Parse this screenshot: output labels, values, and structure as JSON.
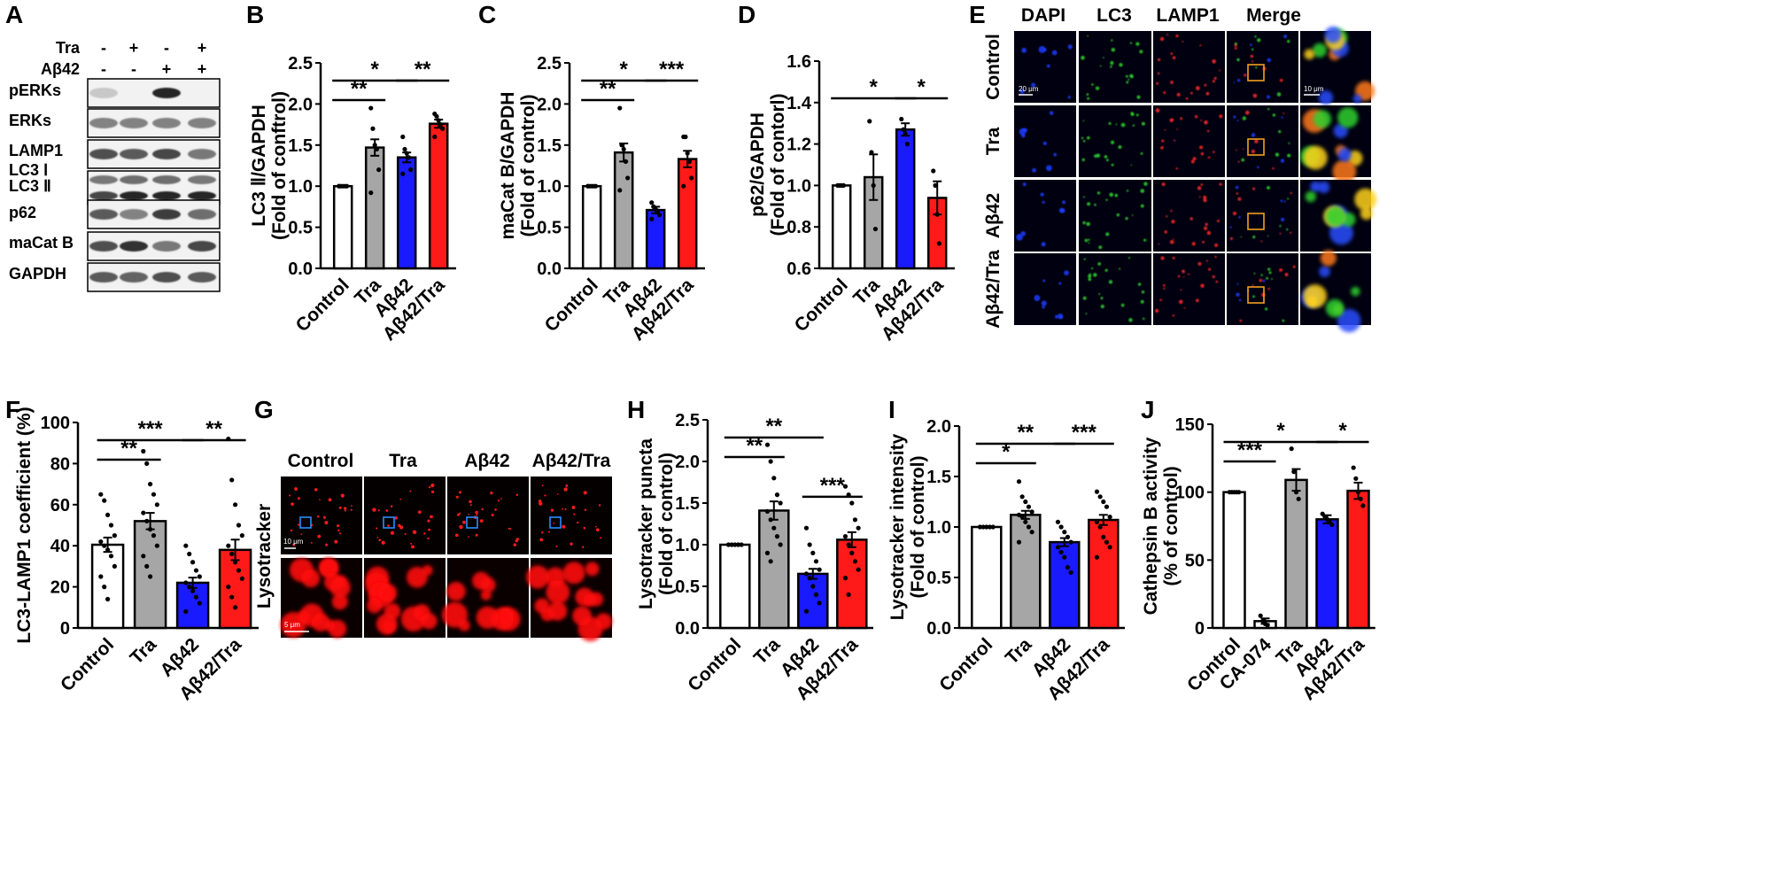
{
  "panels": {
    "A": {
      "label": "A",
      "treatments": [
        {
          "name": "Tra",
          "signs": [
            "-",
            "+",
            "-",
            "+"
          ]
        },
        {
          "name": "Aβ42",
          "signs": [
            "-",
            "-",
            "+",
            "+"
          ]
        }
      ],
      "blots": [
        {
          "name": "pERKs",
          "intensity": [
            0.15,
            0.0,
            0.95,
            0.0
          ]
        },
        {
          "name": "ERKs",
          "intensity": [
            0.5,
            0.5,
            0.5,
            0.5
          ]
        },
        {
          "name": "LAMP1",
          "intensity": [
            0.75,
            0.7,
            0.8,
            0.55
          ]
        },
        {
          "name": "LC3 Ⅰ",
          "intensity": [
            0.55,
            0.6,
            0.6,
            0.55
          ]
        },
        {
          "name": "LC3 Ⅱ",
          "intensity": [
            0.8,
            0.95,
            0.95,
            0.95
          ]
        },
        {
          "name": "p62",
          "intensity": [
            0.7,
            0.5,
            0.85,
            0.6
          ]
        },
        {
          "name": "maCat B",
          "intensity": [
            0.75,
            0.9,
            0.55,
            0.8
          ]
        },
        {
          "name": "GAPDH",
          "intensity": [
            0.7,
            0.65,
            0.75,
            0.7
          ]
        }
      ]
    },
    "E": {
      "label": "E",
      "columns": [
        "DAPI",
        "LC3",
        "LAMP1",
        "Merge"
      ],
      "rows": [
        "Control",
        "Tra",
        "Aβ42",
        "Aβ42/Tra"
      ],
      "scale_main": "20 μm",
      "scale_inset": "10 μm"
    },
    "G": {
      "label": "G",
      "columns": [
        "Control",
        "Tra",
        "Aβ42",
        "Aβ42/Tra"
      ],
      "row_label": "Lysotracker",
      "scale_main": "10 μm",
      "scale_inset": "5 μm"
    }
  },
  "chart_data": [
    {
      "id": "B",
      "label": "B",
      "type": "bar",
      "ylabel": "LC3 Ⅱ/GAPDH",
      "ylabel2": "(Fold of conftrol)",
      "ylim": [
        0,
        2.5
      ],
      "yticks": [
        "0.0",
        "0.5",
        "1.0",
        "1.5",
        "2.0",
        "2.5"
      ],
      "categories": [
        "Control",
        "Tra",
        "Aβ42",
        "Aβ42/Tra"
      ],
      "values": [
        1.0,
        1.47,
        1.35,
        1.76
      ],
      "errors": [
        0.0,
        0.1,
        0.06,
        0.05
      ],
      "colors": [
        "#ffffff",
        "#a6a6a6",
        "#1a1aff",
        "#ff1a1a"
      ],
      "points": [
        [
          1,
          1,
          1,
          1,
          1,
          1
        ],
        [
          1.95,
          1.7,
          1.5,
          1.45,
          1.2,
          0.92
        ],
        [
          1.6,
          1.45,
          1.4,
          1.35,
          1.2,
          1.15
        ],
        [
          1.88,
          1.85,
          1.8,
          1.75,
          1.7,
          1.6
        ]
      ],
      "signif": [
        {
          "from": 0,
          "to": 1,
          "level": 0,
          "text": "**"
        },
        {
          "from": 0,
          "to": 2,
          "level": 1,
          "text": "*"
        },
        {
          "from": 2,
          "to": 3,
          "level": 1,
          "text": "**"
        }
      ]
    },
    {
      "id": "C",
      "label": "C",
      "type": "bar",
      "ylabel": "maCat B/GAPDH",
      "ylabel2": "(Fold of control)",
      "ylim": [
        0,
        2.5
      ],
      "yticks": [
        "0.0",
        "0.5",
        "1.0",
        "1.5",
        "2.0",
        "2.5"
      ],
      "categories": [
        "Control",
        "Tra",
        "Aβ42",
        "Aβ42/Tra"
      ],
      "values": [
        1.0,
        1.41,
        0.71,
        1.33
      ],
      "errors": [
        0.0,
        0.11,
        0.04,
        0.1
      ],
      "colors": [
        "#ffffff",
        "#a6a6a6",
        "#1a1aff",
        "#ff1a1a"
      ],
      "points": [
        [
          1,
          1,
          1,
          1,
          1,
          1
        ],
        [
          1.95,
          1.5,
          1.45,
          1.3,
          1.1,
          0.95
        ],
        [
          0.8,
          0.75,
          0.72,
          0.7,
          0.65,
          0.6
        ],
        [
          1.6,
          1.6,
          1.4,
          1.3,
          1.1,
          1.0
        ]
      ],
      "signif": [
        {
          "from": 0,
          "to": 1,
          "level": 0,
          "text": "**"
        },
        {
          "from": 0,
          "to": 2,
          "level": 1,
          "text": "*"
        },
        {
          "from": 2,
          "to": 3,
          "level": 1,
          "text": "***"
        }
      ]
    },
    {
      "id": "D",
      "label": "D",
      "type": "bar",
      "ylabel": "p62/GAPDH",
      "ylabel2": "(Fold of contorl)",
      "ylim": [
        0.6,
        1.6
      ],
      "yticks": [
        "0.6",
        "0.8",
        "1.0",
        "1.2",
        "1.4",
        "1.6"
      ],
      "categories": [
        "Control",
        "Tra",
        "Aβ42",
        "Aβ42/Tra"
      ],
      "values": [
        1.0,
        1.04,
        1.27,
        0.94
      ],
      "errors": [
        0.0,
        0.11,
        0.03,
        0.08
      ],
      "colors": [
        "#ffffff",
        "#a6a6a6",
        "#1a1aff",
        "#ff1a1a"
      ],
      "points": [
        [
          1,
          1,
          1,
          1
        ],
        [
          1.31,
          1.16,
          1.0,
          0.79
        ],
        [
          1.32,
          1.27,
          1.25,
          1.2
        ],
        [
          1.07,
          1.0,
          0.86,
          0.72
        ]
      ],
      "signif": [
        {
          "from": 0,
          "to": 2,
          "level": 0,
          "text": "*"
        },
        {
          "from": 2,
          "to": 3,
          "level": 0,
          "text": "*"
        }
      ]
    },
    {
      "id": "F",
      "label": "F",
      "type": "bar",
      "ylabel": "LC3-LAMP1 coefficient (%)",
      "ylabel2": "",
      "ylim": [
        0,
        100
      ],
      "yticks": [
        "0",
        "20",
        "40",
        "60",
        "80",
        "100"
      ],
      "categories": [
        "Control",
        "Tra",
        "Aβ42",
        "Aβ42/Tra"
      ],
      "values": [
        40.5,
        52,
        22,
        38
      ],
      "errors": [
        3.5,
        4,
        2.5,
        5
      ],
      "colors": [
        "#ffffff",
        "#a6a6a6",
        "#1a1aff",
        "#ff1a1a"
      ],
      "points": [
        [
          65,
          62,
          55,
          50,
          45,
          42,
          40,
          38,
          35,
          30,
          25,
          20,
          14
        ],
        [
          86,
          80,
          70,
          65,
          60,
          56,
          52,
          48,
          45,
          40,
          35,
          30,
          25
        ],
        [
          40,
          36,
          32,
          28,
          25,
          22,
          20,
          18,
          15,
          12,
          8
        ],
        [
          92,
          72,
          60,
          50,
          45,
          40,
          36,
          32,
          28,
          24,
          20,
          15,
          10
        ]
      ],
      "signif": [
        {
          "from": 0,
          "to": 1,
          "level": 0,
          "text": "**"
        },
        {
          "from": 0,
          "to": 2,
          "level": 1,
          "text": "***"
        },
        {
          "from": 2,
          "to": 3,
          "level": 1,
          "text": "**"
        }
      ]
    },
    {
      "id": "H",
      "label": "H",
      "type": "bar",
      "ylabel": "Lysotracker puncta",
      "ylabel2": "(Fold of control)",
      "ylim": [
        0,
        2.5
      ],
      "yticks": [
        "0.0",
        "0.5",
        "1.0",
        "1.5",
        "2.0",
        "2.5"
      ],
      "categories": [
        "Control",
        "Tra",
        "Aβ42",
        "Aβ42/Tra"
      ],
      "values": [
        1.0,
        1.41,
        0.65,
        1.06
      ],
      "errors": [
        0.0,
        0.11,
        0.06,
        0.09
      ],
      "colors": [
        "#ffffff",
        "#a6a6a6",
        "#1a1aff",
        "#ff1a1a"
      ],
      "points": [
        [
          1,
          1,
          1,
          1,
          1
        ],
        [
          2.2,
          2.0,
          1.8,
          1.6,
          1.5,
          1.4,
          1.3,
          1.2,
          1.1,
          1.0,
          0.9,
          0.8
        ],
        [
          1.2,
          1.0,
          0.9,
          0.8,
          0.7,
          0.65,
          0.6,
          0.5,
          0.4,
          0.3,
          0.2
        ],
        [
          1.7,
          1.6,
          1.5,
          1.3,
          1.2,
          1.1,
          1.0,
          0.9,
          0.8,
          0.7,
          0.6,
          0.4
        ]
      ],
      "signif": [
        {
          "from": 0,
          "to": 1,
          "level": 0,
          "text": "**"
        },
        {
          "from": 0,
          "to": 2,
          "level": 1,
          "text": "**"
        },
        {
          "from": 2,
          "to": 3,
          "level": -1,
          "text": "***"
        }
      ]
    },
    {
      "id": "I",
      "label": "I",
      "type": "bar",
      "ylabel": "Lysotracker intensity",
      "ylabel2": "(Fold of control)",
      "ylim": [
        0,
        2.0
      ],
      "yticks": [
        "0.0",
        "0.5",
        "1.0",
        "1.5",
        "2.0"
      ],
      "categories": [
        "Control",
        "Tra",
        "Aβ42",
        "Aβ42/Tra"
      ],
      "values": [
        1.0,
        1.12,
        0.85,
        1.07
      ],
      "errors": [
        0.0,
        0.04,
        0.04,
        0.05
      ],
      "colors": [
        "#ffffff",
        "#a6a6a6",
        "#1a1aff",
        "#ff1a1a"
      ],
      "points": [
        [
          1,
          1,
          1,
          1,
          1
        ],
        [
          1.45,
          1.3,
          1.25,
          1.2,
          1.15,
          1.12,
          1.1,
          1.05,
          1.0,
          0.95,
          0.85
        ],
        [
          1.05,
          1.0,
          0.95,
          0.9,
          0.85,
          0.8,
          0.75,
          0.7,
          0.6,
          0.55
        ],
        [
          1.35,
          1.3,
          1.25,
          1.2,
          1.1,
          1.05,
          1.0,
          0.9,
          0.85,
          0.8,
          0.7
        ]
      ],
      "signif": [
        {
          "from": 0,
          "to": 1,
          "level": 0,
          "text": "*"
        },
        {
          "from": 0,
          "to": 2,
          "level": 1,
          "text": "**"
        },
        {
          "from": 2,
          "to": 3,
          "level": 1,
          "text": "***"
        }
      ]
    },
    {
      "id": "J",
      "label": "J",
      "type": "bar",
      "ylabel": "Cathepsin B activity",
      "ylabel2": "(% of control)",
      "ylim": [
        0,
        150
      ],
      "yticks": [
        "0",
        "50",
        "100",
        "150"
      ],
      "categories": [
        "Control",
        "CA-074",
        "Tra",
        "Aβ42",
        "Aβ42/Tra"
      ],
      "values": [
        100,
        5,
        109,
        80,
        101
      ],
      "errors": [
        0,
        2,
        8,
        3,
        6
      ],
      "colors": [
        "#ffffff",
        "#ffffff",
        "#a6a6a6",
        "#1a1aff",
        "#ff1a1a"
      ],
      "points": [
        [
          100,
          100,
          100,
          100,
          100
        ],
        [
          9,
          5,
          3,
          2
        ],
        [
          132,
          115,
          100,
          95
        ],
        [
          84,
          82,
          80,
          78,
          76
        ],
        [
          118,
          110,
          100,
          95,
          90
        ]
      ],
      "signif": [
        {
          "from": 0,
          "to": 1,
          "level": 0,
          "text": "***"
        },
        {
          "from": 0,
          "to": 3,
          "level": 1,
          "text": "*"
        },
        {
          "from": 3,
          "to": 4,
          "level": 1,
          "text": "*"
        }
      ]
    }
  ]
}
